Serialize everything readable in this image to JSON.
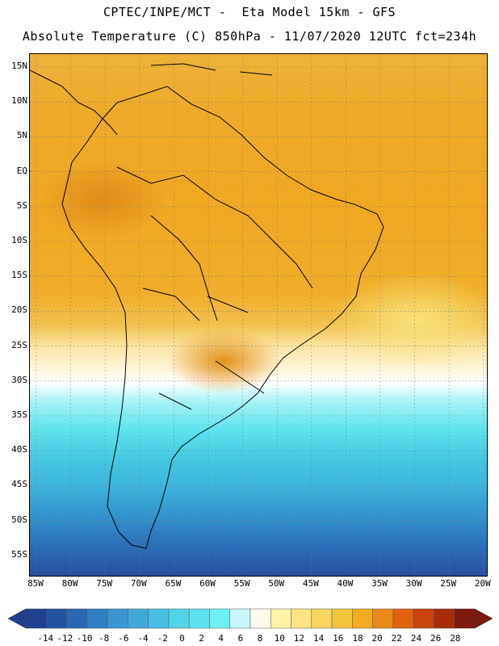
{
  "header": {
    "line1": "CPTEC/INPE/MCT -  Eta Model 15km - GFS",
    "line2": "Absolute Temperature (C) 850hPa - 11/07/2020 12UTC fct=234h"
  },
  "latitude_labels": [
    "15N",
    "10N",
    "5N",
    "EQ",
    "5S",
    "10S",
    "15S",
    "20S",
    "25S",
    "30S",
    "35S",
    "40S",
    "45S",
    "50S",
    "55S"
  ],
  "longitude_labels": [
    "85W",
    "80W",
    "75W",
    "70W",
    "65W",
    "60W",
    "55W",
    "50W",
    "45W",
    "40W",
    "35W",
    "30W",
    "25W",
    "20W"
  ],
  "colorbar": {
    "labels": [
      "-14",
      "-12",
      "-10",
      "-8",
      "-6",
      "-4",
      "-2",
      "0",
      "2",
      "4",
      "6",
      "8",
      "10",
      "12",
      "14",
      "16",
      "18",
      "20",
      "22",
      "24",
      "26",
      "28"
    ],
    "colors": [
      "#1f3f8f",
      "#2552a0",
      "#2a67b2",
      "#317fc4",
      "#3996d1",
      "#40a9d9",
      "#48bfe2",
      "#52d3e9",
      "#5ee2ee",
      "#6ef0f3",
      "#c8f5f8",
      "#fffaf0",
      "#fff3a8",
      "#fbe482",
      "#f6d660",
      "#f2c43d",
      "#f1ad1f",
      "#e98a18",
      "#df6210",
      "#c9440d",
      "#a82c0b",
      "#7a1a10"
    ]
  }
}
